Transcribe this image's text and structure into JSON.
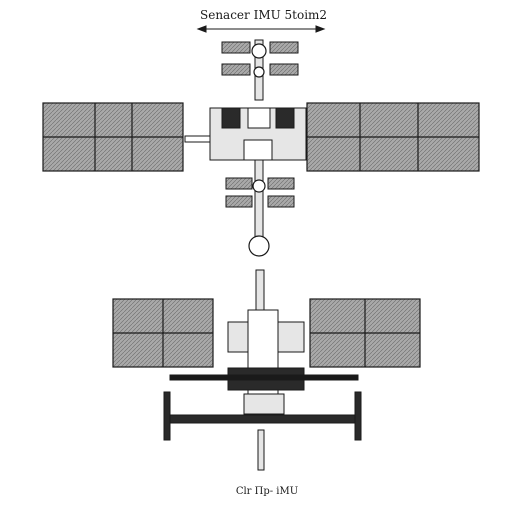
{
  "diagram": {
    "top_label": "Senacer IMU 5toim2",
    "bottom_label": "Clr Πp- iMU"
  },
  "colors": {
    "line": "#1a1a1a",
    "panel_fill": "#a9a9a9",
    "body_fill": "#e6e6e6",
    "dark_fill": "#2a2a2a",
    "background": "#ffffff"
  },
  "icons": {
    "top_dimension_arrow": "double-arrow",
    "station_structure": "space-station-line-art"
  }
}
